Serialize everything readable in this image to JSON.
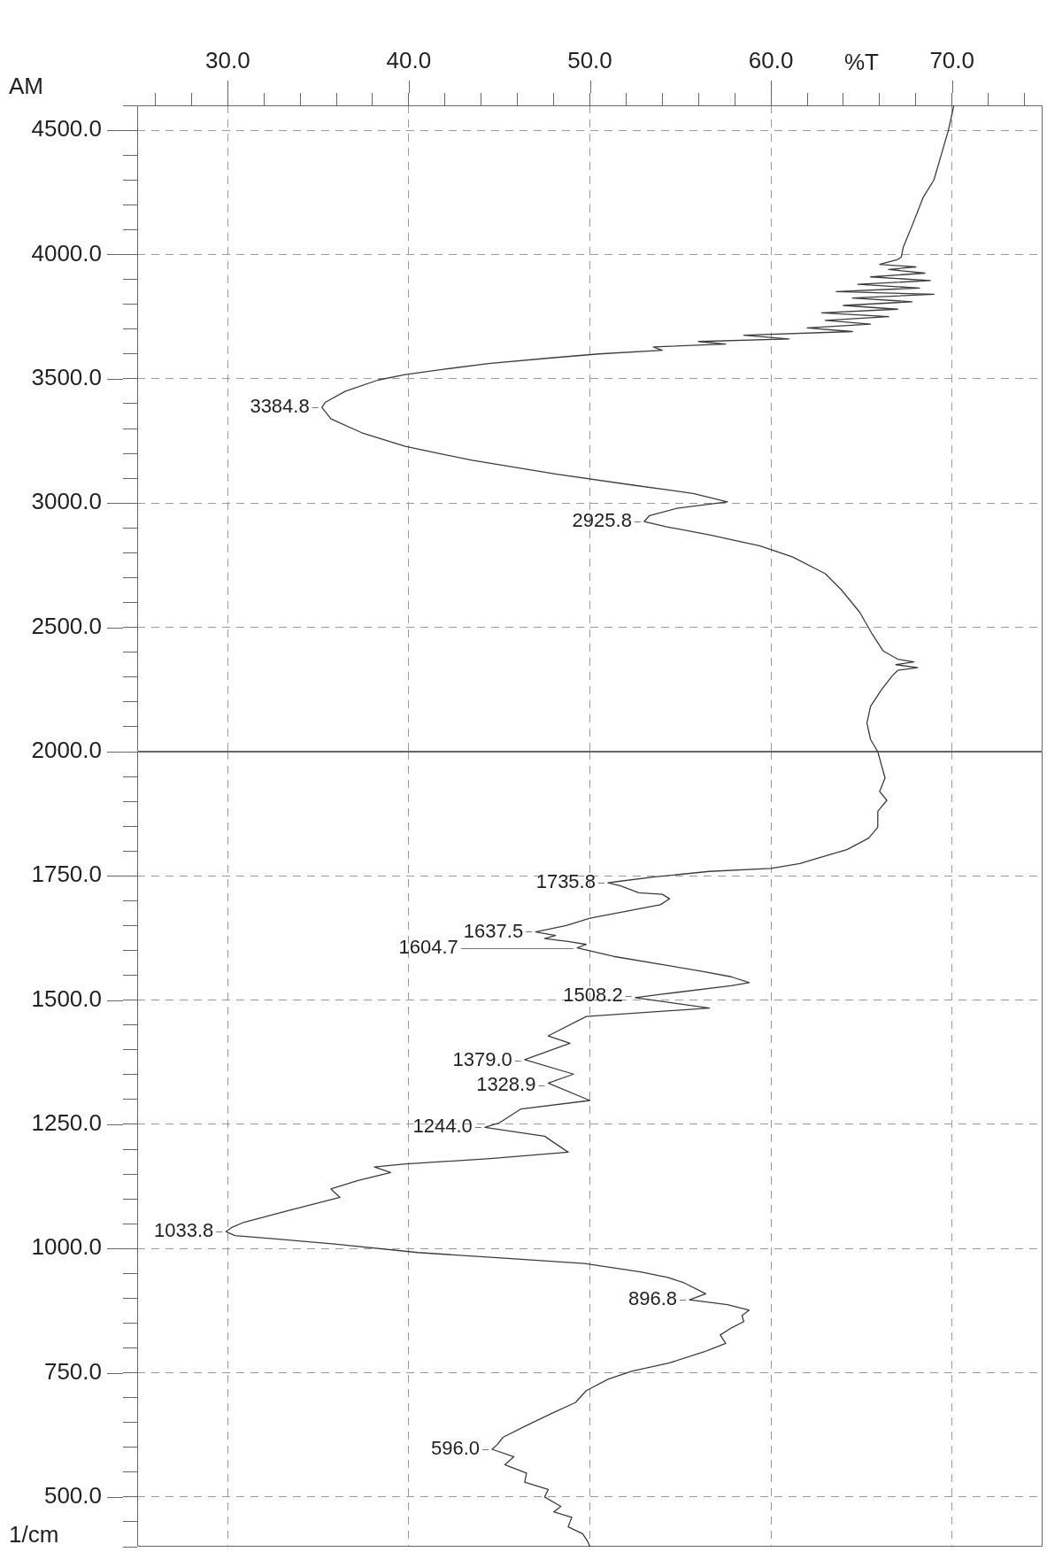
{
  "chart_data": [
    {
      "type": "line",
      "orientation": "horizontal",
      "xlabel": "%T",
      "color": "#3c3c3c",
      "x": [
        4600,
        4500,
        4400,
        4300,
        4229,
        4117,
        4028,
        3990,
        3980,
        3960,
        3950,
        3940,
        3925,
        3910,
        3895,
        3880,
        3865,
        3851,
        3840,
        3825,
        3810,
        3795,
        3780,
        3765,
        3750,
        3735,
        3720,
        3705,
        3690,
        3675,
        3660,
        3650,
        3640,
        3628,
        3615,
        3600,
        3585,
        3561,
        3539,
        3517,
        3495,
        3450,
        3406,
        3385,
        3339,
        3283,
        3228,
        3172,
        3117,
        3072,
        3039,
        3005,
        2979,
        2950,
        2926,
        2905,
        2872,
        2828,
        2783,
        2716,
        2650,
        2561,
        2472,
        2405,
        2372,
        2361,
        2350,
        2338,
        2327,
        2305,
        2249,
        2182,
        2115,
        2049,
        2000
      ],
      "values": [
        70.1,
        69.8,
        69.4,
        69.0,
        68.4,
        67.8,
        67.3,
        67.2,
        67.0,
        66.0,
        68.0,
        66.5,
        68.5,
        65.5,
        68.8,
        64.8,
        68.2,
        63.6,
        69.0,
        64.5,
        67.8,
        64.0,
        67.0,
        62.8,
        66.5,
        63.0,
        65.5,
        62.0,
        64.5,
        58.5,
        61.0,
        56.0,
        57.5,
        53.5,
        54.0,
        50.5,
        48.0,
        44.4,
        42.0,
        39.8,
        38.3,
        36.5,
        35.4,
        35.2,
        35.7,
        37.4,
        39.8,
        43.5,
        48.1,
        52.4,
        55.7,
        57.6,
        54.8,
        53.3,
        53.0,
        54.2,
        56.6,
        59.4,
        61.2,
        63.0,
        63.9,
        64.9,
        65.6,
        66.2,
        67.0,
        67.9,
        66.9,
        68.1,
        67.0,
        66.7,
        66.1,
        65.5,
        65.3,
        65.5,
        65.9
      ],
      "xlim": [
        25,
        75
      ],
      "xticks": [
        {
          "value": 26,
          "label": null
        },
        {
          "value": 28,
          "label": null
        },
        {
          "value": 30,
          "label": "30.0"
        },
        {
          "value": 32,
          "label": null
        },
        {
          "value": 34,
          "label": null
        },
        {
          "value": 36,
          "label": null
        },
        {
          "value": 38,
          "label": null
        },
        {
          "value": 40,
          "label": "40.0"
        },
        {
          "value": 42,
          "label": null
        },
        {
          "value": 44,
          "label": null
        },
        {
          "value": 46,
          "label": null
        },
        {
          "value": 48,
          "label": null
        },
        {
          "value": 50,
          "label": "50.0"
        },
        {
          "value": 52,
          "label": null
        },
        {
          "value": 54,
          "label": null
        },
        {
          "value": 56,
          "label": null
        },
        {
          "value": 58,
          "label": null
        },
        {
          "value": 60,
          "label": "60.0"
        },
        {
          "value": 62,
          "label": null
        },
        {
          "value": 64,
          "label": null
        },
        {
          "value": 66,
          "label": null
        },
        {
          "value": 68,
          "label": null
        },
        {
          "value": 70,
          "label": "70.0"
        },
        {
          "value": 72,
          "label": null
        },
        {
          "value": 74,
          "label": null
        }
      ],
      "ylim": [
        2000,
        4600
      ],
      "yticks": [
        {
          "value": 4600,
          "label": null
        },
        {
          "value": 4500,
          "label": "4500.0"
        },
        {
          "value": 4400,
          "label": null
        },
        {
          "value": 4300,
          "label": null
        },
        {
          "value": 4200,
          "label": null
        },
        {
          "value": 4100,
          "label": null
        },
        {
          "value": 4000,
          "label": "4000.0"
        },
        {
          "value": 3900,
          "label": null
        },
        {
          "value": 3800,
          "label": null
        },
        {
          "value": 3700,
          "label": null
        },
        {
          "value": 3600,
          "label": null
        },
        {
          "value": 3500,
          "label": "3500.0"
        },
        {
          "value": 3400,
          "label": null
        },
        {
          "value": 3300,
          "label": null
        },
        {
          "value": 3200,
          "label": null
        },
        {
          "value": 3100,
          "label": null
        },
        {
          "value": 3000,
          "label": "3000.0"
        },
        {
          "value": 2900,
          "label": null
        },
        {
          "value": 2800,
          "label": null
        },
        {
          "value": 2700,
          "label": null
        },
        {
          "value": 2600,
          "label": null
        },
        {
          "value": 2500,
          "label": "2500.0"
        },
        {
          "value": 2400,
          "label": null
        },
        {
          "value": 2300,
          "label": null
        },
        {
          "value": 2200,
          "label": null
        },
        {
          "value": 2100,
          "label": null
        },
        {
          "value": 2000,
          "label": "2000.0"
        }
      ],
      "grid": true,
      "annotations": [
        "AM",
        {
          "text": "3384.8",
          "x": 35.2,
          "y": 3384.8
        },
        {
          "text": "2925.8",
          "x": 53.0,
          "y": 2925.8
        }
      ]
    },
    {
      "type": "line",
      "orientation": "horizontal",
      "ylabel": "1/cm",
      "color": "#3c3c3c",
      "x": [
        2000,
        1947,
        1920,
        1902,
        1880,
        1848,
        1826,
        1803,
        1787,
        1775,
        1765,
        1759,
        1748,
        1739,
        1736,
        1730,
        1716,
        1713,
        1704,
        1692,
        1665,
        1650,
        1637,
        1630,
        1624,
        1618,
        1612,
        1605,
        1588,
        1558,
        1547,
        1535,
        1529,
        1511,
        1505,
        1484,
        1467,
        1428,
        1413,
        1380,
        1351,
        1333,
        1298,
        1281,
        1253,
        1244,
        1226,
        1194,
        1181,
        1170,
        1164,
        1153,
        1137,
        1120,
        1103,
        1076,
        1053,
        1042,
        1034,
        1026,
        1020,
        1009,
        992,
        981,
        970,
        953,
        942,
        931,
        909,
        897,
        887,
        876,
        865,
        853,
        840,
        826,
        809,
        792,
        770,
        753,
        737,
        714,
        690,
        670,
        642,
        620,
        606,
        596,
        581,
        565,
        548,
        530,
        515,
        500,
        481,
        470,
        459,
        440,
        426,
        409,
        400
      ],
      "values": [
        65.9,
        66.3,
        66.0,
        66.4,
        65.9,
        65.9,
        65.4,
        64.2,
        62.7,
        61.6,
        60.0,
        56.6,
        53.6,
        51.6,
        51.0,
        51.7,
        52.7,
        54.0,
        54.4,
        53.9,
        50.0,
        48.7,
        47.0,
        48.1,
        47.5,
        48.8,
        49.8,
        49.3,
        51.3,
        56.2,
        57.8,
        58.8,
        57.8,
        53.8,
        52.5,
        56.6,
        49.8,
        47.7,
        48.9,
        46.4,
        49.1,
        47.7,
        50.0,
        46.2,
        45.0,
        44.2,
        47.5,
        48.8,
        44.5,
        39.7,
        38.1,
        39.0,
        37.2,
        35.7,
        36.2,
        33.3,
        30.9,
        30.2,
        29.9,
        30.4,
        32.5,
        35.9,
        40.5,
        45.1,
        49.7,
        52.8,
        54.3,
        55.2,
        56.4,
        55.5,
        57.6,
        58.8,
        58.4,
        58.5,
        57.8,
        57.2,
        57.5,
        56.3,
        54.4,
        52.3,
        51.0,
        49.8,
        49.2,
        48.0,
        46.4,
        45.2,
        44.9,
        44.6,
        45.8,
        45.3,
        46.5,
        46.4,
        47.7,
        47.5,
        48.4,
        48.0,
        49.0,
        48.8,
        49.6,
        49.9,
        50.0
      ],
      "xlim": [
        25,
        75
      ],
      "xticks": [
        30,
        40,
        50,
        60,
        70
      ],
      "ylim": [
        400,
        2000
      ],
      "yticks": [
        {
          "value": 1950,
          "label": null
        },
        {
          "value": 1900,
          "label": null
        },
        {
          "value": 1850,
          "label": null
        },
        {
          "value": 1800,
          "label": null
        },
        {
          "value": 1750,
          "label": "1750.0"
        },
        {
          "value": 1700,
          "label": null
        },
        {
          "value": 1650,
          "label": null
        },
        {
          "value": 1600,
          "label": null
        },
        {
          "value": 1550,
          "label": null
        },
        {
          "value": 1500,
          "label": "1500.0"
        },
        {
          "value": 1450,
          "label": null
        },
        {
          "value": 1400,
          "label": null
        },
        {
          "value": 1350,
          "label": null
        },
        {
          "value": 1300,
          "label": null
        },
        {
          "value": 1250,
          "label": "1250.0"
        },
        {
          "value": 1200,
          "label": null
        },
        {
          "value": 1150,
          "label": null
        },
        {
          "value": 1100,
          "label": null
        },
        {
          "value": 1050,
          "label": null
        },
        {
          "value": 1000,
          "label": "1000.0"
        },
        {
          "value": 950,
          "label": null
        },
        {
          "value": 900,
          "label": null
        },
        {
          "value": 850,
          "label": null
        },
        {
          "value": 800,
          "label": null
        },
        {
          "value": 750,
          "label": "750.0"
        },
        {
          "value": 700,
          "label": null
        },
        {
          "value": 650,
          "label": null
        },
        {
          "value": 600,
          "label": null
        },
        {
          "value": 550,
          "label": null
        },
        {
          "value": 500,
          "label": "500.0"
        },
        {
          "value": 450,
          "label": null
        },
        {
          "value": 400,
          "label": null
        }
      ],
      "tick_labels": "y",
      "grid": true,
      "annotations": [
        {
          "text": "1735.8",
          "x": 51.0,
          "y": 1735.8
        },
        {
          "text": "1637.5",
          "x": 47.0,
          "y": 1637.5
        },
        {
          "text": "1604.7",
          "x": 49.3,
          "y": 1604.7
        },
        {
          "text": "1508.2",
          "x": 52.5,
          "y": 1508.2
        },
        {
          "text": "1379.0",
          "x": 46.4,
          "y": 1379.0
        },
        {
          "text": "1328.9",
          "x": 47.7,
          "y": 1328.9
        },
        {
          "text": "1244.0",
          "x": 44.2,
          "y": 1244.0
        },
        {
          "text": "1033.8",
          "x": 29.9,
          "y": 1033.8
        },
        {
          "text": "896.8",
          "x": 55.5,
          "y": 896.8
        },
        {
          "text": "596.0",
          "x": 44.6,
          "y": 596.0
        }
      ]
    }
  ]
}
